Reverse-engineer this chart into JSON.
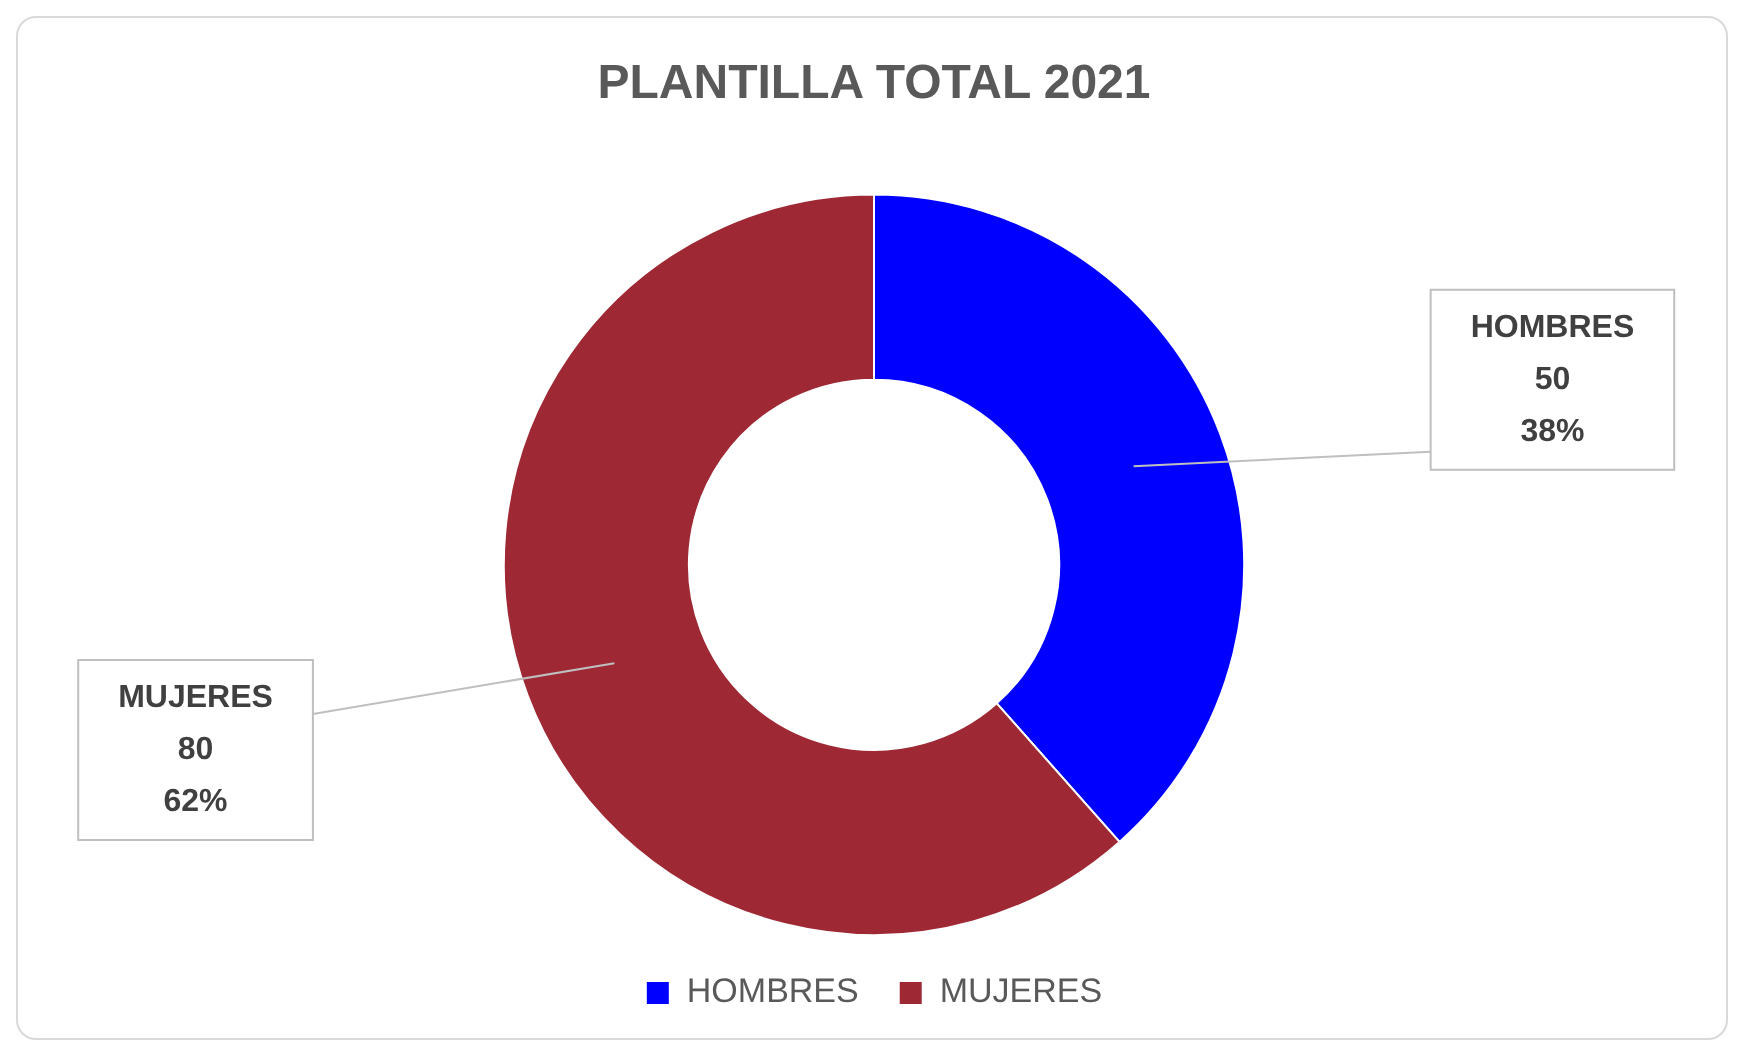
{
  "chart_data": {
    "type": "donut",
    "title": "PLANTILLA TOTAL 2021",
    "categories": [
      "HOMBRES",
      "MUJERES"
    ],
    "values": [
      50,
      80
    ],
    "colors": [
      "#0000ff",
      "#9e2834"
    ],
    "value_labels": [
      "50\n38%",
      "80\n62%"
    ],
    "legend": "bottom"
  }
}
